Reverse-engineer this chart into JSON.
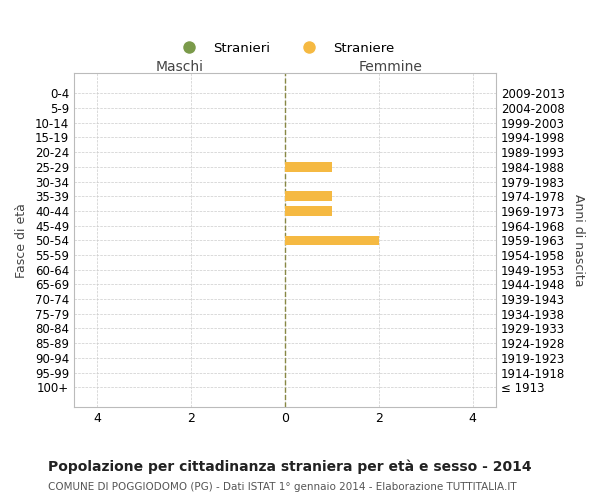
{
  "age_groups": [
    "100+",
    "95-99",
    "90-94",
    "85-89",
    "80-84",
    "75-79",
    "70-74",
    "65-69",
    "60-64",
    "55-59",
    "50-54",
    "45-49",
    "40-44",
    "35-39",
    "30-34",
    "25-29",
    "20-24",
    "15-19",
    "10-14",
    "5-9",
    "0-4"
  ],
  "birth_years": [
    "≤ 1913",
    "1914-1918",
    "1919-1923",
    "1924-1928",
    "1929-1933",
    "1934-1938",
    "1939-1943",
    "1944-1948",
    "1949-1953",
    "1954-1958",
    "1959-1963",
    "1964-1968",
    "1969-1973",
    "1974-1978",
    "1979-1983",
    "1984-1988",
    "1989-1993",
    "1994-1998",
    "1999-2003",
    "2004-2008",
    "2009-2013"
  ],
  "males_stranieri": [
    0,
    0,
    0,
    0,
    0,
    0,
    0,
    0,
    0,
    0,
    0,
    0,
    0,
    0,
    0,
    0,
    0,
    0,
    0,
    0,
    0
  ],
  "females_straniere": [
    0,
    0,
    0,
    0,
    0,
    0,
    0,
    0,
    0,
    0,
    2,
    0,
    1,
    1,
    0,
    1,
    0,
    0,
    0,
    0,
    0
  ],
  "bar_color_male": "#7a9a4a",
  "bar_color_female": "#f5b942",
  "center_line_color": "#888844",
  "grid_color": "#cccccc",
  "bg_color": "#ffffff",
  "title": "Popolazione per cittadinanza straniera per età e sesso - 2014",
  "subtitle": "COMUNE DI POGGIODOMO (PG) - Dati ISTAT 1° gennaio 2014 - Elaborazione TUTTITALIA.IT",
  "xlabel_left": "Maschi",
  "xlabel_right": "Femmine",
  "ylabel_left": "Fasce di età",
  "ylabel_right": "Anni di nascita",
  "legend_male": "Stranieri",
  "legend_female": "Straniere",
  "xlim": 4.5,
  "xticks_vals": [
    -4,
    -2,
    0,
    2,
    4
  ],
  "xticks_labels": [
    "4",
    "2",
    "0",
    "2",
    "4"
  ]
}
